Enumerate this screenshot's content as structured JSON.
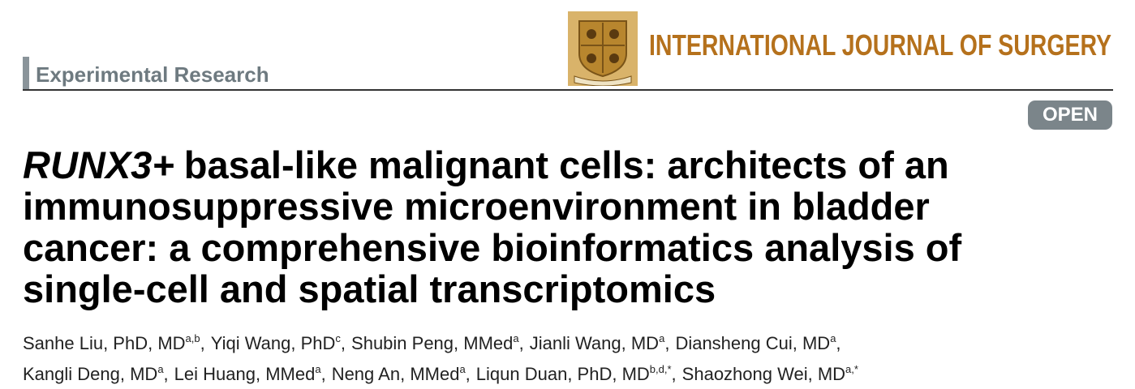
{
  "header": {
    "section": "Experimental Research",
    "journal": "INTERNATIONAL JOURNAL OF SURGERY",
    "badge": "OPEN"
  },
  "title": {
    "emphasis": "RUNX3+",
    "lines": [
      "basal-like malignant cells: architects of an",
      "immunosuppressive microenvironment in bladder",
      "cancer: a comprehensive bioinformatics analysis of",
      "single-cell and spatial transcriptomics"
    ]
  },
  "authors": [
    [
      {
        "name": "Sanhe Liu, PhD, MD",
        "affil": "a,b",
        "after": ","
      },
      {
        "name": "Yiqi Wang, PhD",
        "affil": "c",
        "after": ","
      },
      {
        "name": "Shubin Peng, MMed",
        "affil": "a",
        "after": ","
      },
      {
        "name": "Jianli Wang, MD",
        "affil": "a",
        "after": ","
      },
      {
        "name": "Diansheng Cui, MD",
        "affil": "a",
        "after": ","
      }
    ],
    [
      {
        "name": "Kangli Deng, MD",
        "affil": "a",
        "after": ","
      },
      {
        "name": "Lei Huang, MMed",
        "affil": "a",
        "after": ","
      },
      {
        "name": "Neng An, MMed",
        "affil": "a",
        "after": ","
      },
      {
        "name": "Liqun Duan, PhD, MD",
        "affil": "b,d,*",
        "after": ","
      },
      {
        "name": "Shaozhong Wei, MD",
        "affil": "a,*"
      }
    ]
  ]
}
